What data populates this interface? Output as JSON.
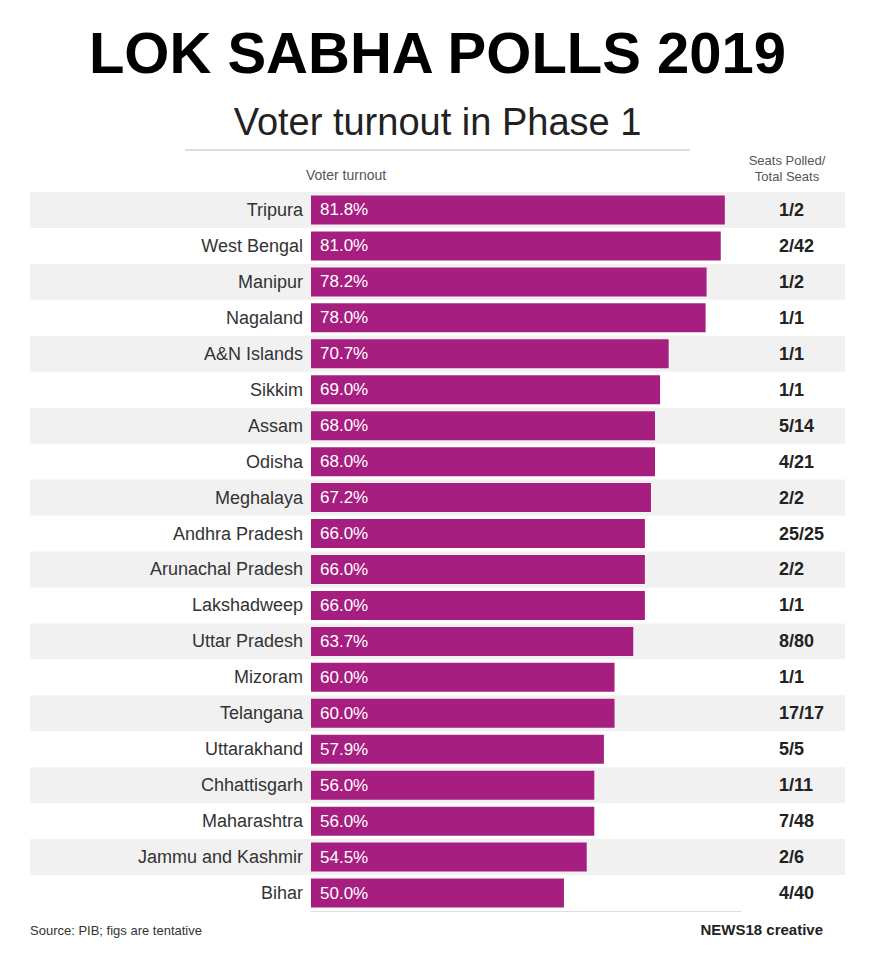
{
  "chart_data": {
    "type": "bar",
    "title": "LOK SABHA POLLS 2019",
    "subtitle": "Voter turnout in Phase 1",
    "xlabel": "Voter turnout",
    "orientation": "horizontal",
    "categories": [
      "Tripura",
      "West Bengal",
      "Manipur",
      "Nagaland",
      "A&N Islands",
      "Sikkim",
      "Assam",
      "Odisha",
      "Meghalaya",
      "Andhra Pradesh",
      "Arunachal Pradesh",
      "Lakshadweep",
      "Uttar Pradesh",
      "Mizoram",
      "Telangana",
      "Uttarakhand",
      "Chhattisgarh",
      "Maharashtra",
      "Jammu and Kashmir",
      "Bihar"
    ],
    "values": [
      81.8,
      81.0,
      78.2,
      78.0,
      70.7,
      69.0,
      68.0,
      68.0,
      67.2,
      66.0,
      66.0,
      66.0,
      63.7,
      60.0,
      60.0,
      57.9,
      56.0,
      56.0,
      54.5,
      50.0
    ],
    "value_labels": [
      "81.8%",
      "81.0%",
      "78.2%",
      "78.0%",
      "70.7%",
      "69.0%",
      "68.0%",
      "68.0%",
      "67.2%",
      "66.0%",
      "66.0%",
      "66.0%",
      "63.7%",
      "60.0%",
      "60.0%",
      "57.9%",
      "56.0%",
      "56.0%",
      "54.5%",
      "50.0%"
    ],
    "seats_header": "Seats Polled/\nTotal Seats",
    "seats": [
      "1/2",
      "2/42",
      "1/2",
      "1/1",
      "1/1",
      "1/1",
      "5/14",
      "4/21",
      "2/2",
      "25/25",
      "2/2",
      "1/1",
      "8/80",
      "1/1",
      "17/17",
      "5/5",
      "1/11",
      "7/48",
      "2/6",
      "4/40"
    ],
    "source": "Source: PIB; figs are tentative",
    "credit": "NEWS18 creative",
    "color": "#a61e7f",
    "xlim": [
      0,
      85
    ],
    "data_labels": true,
    "tick_labels": "y",
    "grid": false
  }
}
